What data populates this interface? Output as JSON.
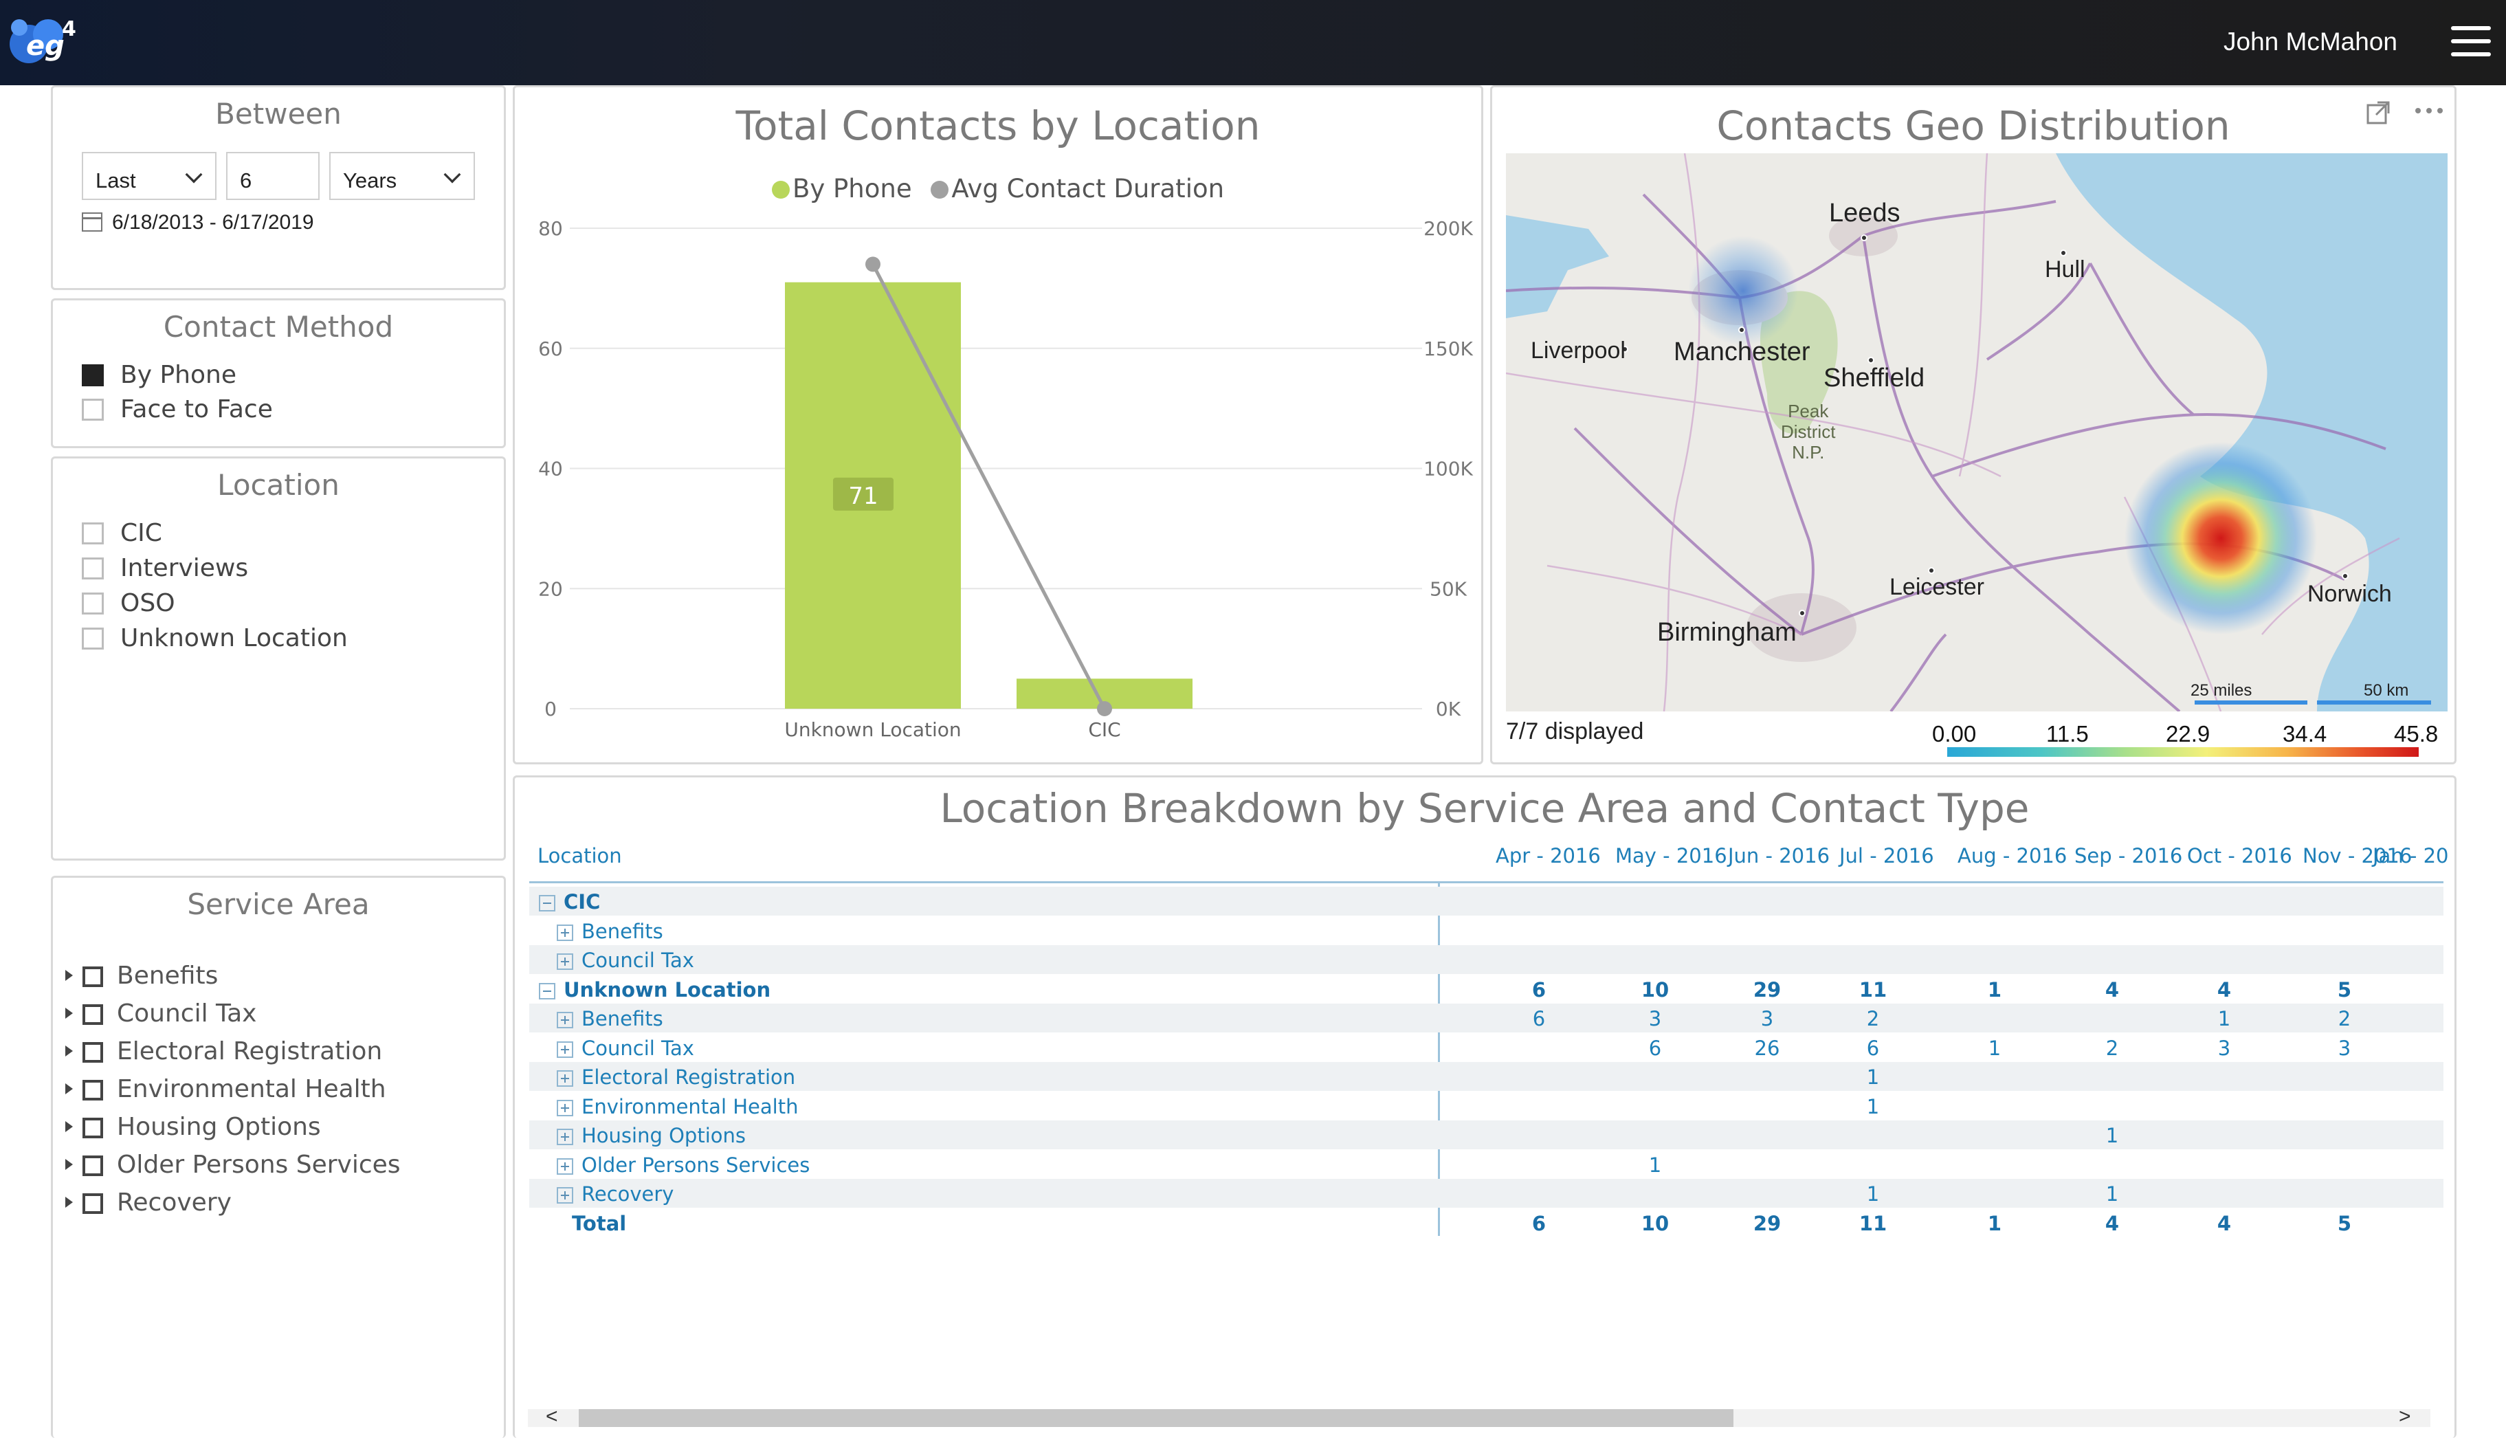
{
  "header": {
    "user_name": "John McMahon",
    "logo_icon": "eg4-logo-icon",
    "menu_icon": "hamburger-menu-icon"
  },
  "between": {
    "title": "Between",
    "period_select": "Last",
    "amount": "6",
    "unit_select": "Years",
    "date_range": "6/18/2013 - 6/17/2019"
  },
  "contact_method": {
    "title": "Contact Method",
    "items": [
      {
        "label": "By Phone",
        "checked": true
      },
      {
        "label": "Face to Face",
        "checked": false
      }
    ]
  },
  "location_filter": {
    "title": "Location",
    "items": [
      {
        "label": "CIC"
      },
      {
        "label": "Interviews"
      },
      {
        "label": "OSO"
      },
      {
        "label": "Unknown Location"
      }
    ]
  },
  "service_area": {
    "title": "Service Area",
    "items": [
      {
        "label": "Benefits"
      },
      {
        "label": "Council Tax"
      },
      {
        "label": "Electoral Registration"
      },
      {
        "label": "Environmental Health"
      },
      {
        "label": "Housing Options"
      },
      {
        "label": "Older Persons Services"
      },
      {
        "label": "Recovery"
      }
    ]
  },
  "chart_data": {
    "type": "bar",
    "title": "Total Contacts by Location",
    "categories": [
      "Unknown Location",
      "CIC"
    ],
    "series": [
      {
        "name": "By Phone",
        "type": "bar",
        "axis": "left",
        "values": [
          71,
          5
        ],
        "color": "#b8d65a"
      },
      {
        "name": "Avg Contact Duration",
        "type": "line",
        "axis": "right",
        "values": [
          185000,
          0
        ],
        "color": "#a0a0a0"
      }
    ],
    "data_labels": [
      "71"
    ],
    "ylim": [
      0,
      80
    ],
    "y_ticks": [
      "0",
      "20",
      "40",
      "60",
      "80"
    ],
    "y2lim": [
      0,
      200000
    ],
    "y2_ticks": [
      "0K",
      "50K",
      "100K",
      "150K",
      "200K"
    ],
    "legend_position": "top-center",
    "grid": true
  },
  "map": {
    "title": "Contacts Geo Distribution",
    "expand_icon": "expand-icon",
    "more_icon": "more-options-icon",
    "cities": [
      "Leeds",
      "Hull",
      "Liverpool",
      "Manchester",
      "Sheffield",
      "Leicester",
      "Birmingham",
      "Norwich"
    ],
    "park_label": "Peak\nDistrict\nN.P.",
    "scale_miles": "25 miles",
    "scale_km": "50 km",
    "displayed": "7/7 displayed",
    "gradient_labels": [
      "0.00",
      "11.5",
      "22.9",
      "34.4",
      "45.8"
    ]
  },
  "breakdown": {
    "title": "Location Breakdown by Service Area and Contact Type",
    "row_header": "Location",
    "columns": [
      "Apr - 2016",
      "May - 2016",
      "Jun - 2016",
      "Jul - 2016",
      "Aug - 2016",
      "Sep - 2016",
      "Oct - 2016",
      "Nov - 2016",
      "Jan - 20"
    ],
    "rows": [
      {
        "label": "CIC",
        "level": 0,
        "bold": true,
        "values": [
          "",
          "",
          "",
          "",
          "",
          "",
          "",
          ""
        ]
      },
      {
        "label": "Benefits",
        "level": 1,
        "values": [
          "",
          "",
          "",
          "",
          "",
          "",
          "",
          ""
        ]
      },
      {
        "label": "Council Tax",
        "level": 1,
        "values": [
          "",
          "",
          "",
          "",
          "",
          "",
          "",
          ""
        ]
      },
      {
        "label": "Unknown Location",
        "level": 0,
        "bold": true,
        "values": [
          "6",
          "10",
          "29",
          "11",
          "1",
          "4",
          "4",
          "5"
        ]
      },
      {
        "label": "Benefits",
        "level": 1,
        "values": [
          "6",
          "3",
          "3",
          "2",
          "",
          "",
          "1",
          "2"
        ]
      },
      {
        "label": "Council Tax",
        "level": 1,
        "values": [
          "",
          "6",
          "26",
          "6",
          "1",
          "2",
          "3",
          "3"
        ]
      },
      {
        "label": "Electoral Registration",
        "level": 1,
        "values": [
          "",
          "",
          "",
          "1",
          "",
          "",
          "",
          ""
        ]
      },
      {
        "label": "Environmental Health",
        "level": 1,
        "values": [
          "",
          "",
          "",
          "1",
          "",
          "",
          "",
          ""
        ]
      },
      {
        "label": "Housing Options",
        "level": 1,
        "values": [
          "",
          "",
          "",
          "",
          "",
          "1",
          "",
          ""
        ]
      },
      {
        "label": "Older Persons Services",
        "level": 1,
        "values": [
          "",
          "1",
          "",
          "",
          "",
          "",
          "",
          ""
        ]
      },
      {
        "label": "Recovery",
        "level": 1,
        "values": [
          "",
          "",
          "",
          "1",
          "",
          "1",
          "",
          ""
        ]
      },
      {
        "label": "Total",
        "level": 0,
        "bold": true,
        "total": true,
        "values": [
          "6",
          "10",
          "29",
          "11",
          "1",
          "4",
          "4",
          "5"
        ]
      }
    ],
    "scroll_left": "<",
    "scroll_right": ">"
  }
}
